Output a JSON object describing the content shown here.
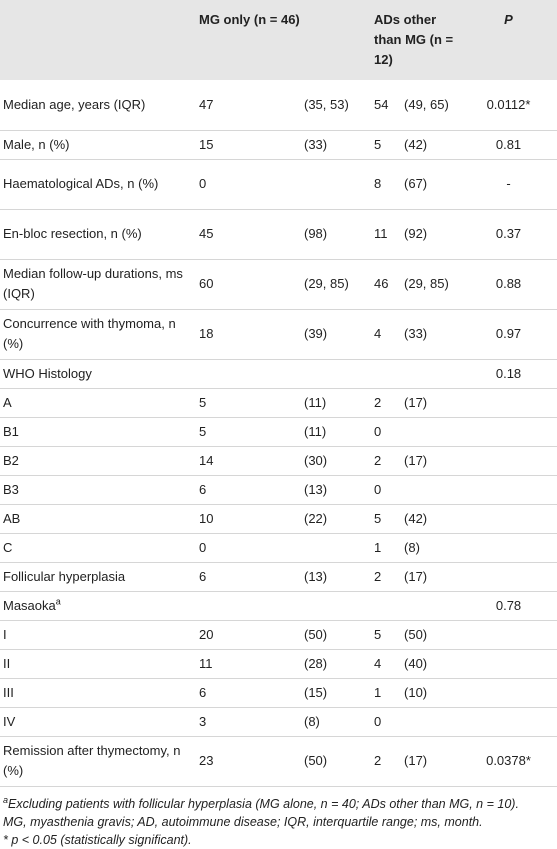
{
  "table": {
    "header": [
      "MG only (n = 46)",
      "ADs other than MG (n = 12)",
      "P"
    ],
    "rows": [
      {
        "label": "Median age, years (IQR)",
        "cells": [
          "47",
          "(35, 53)",
          "54",
          "(49, 65)",
          "0.0112*"
        ]
      },
      {
        "label": "Male, n (%)",
        "cells": [
          "15",
          "(33)",
          "5",
          "(42)",
          "0.81"
        ]
      },
      {
        "label": "Haematological ADs, n (%)",
        "cells": [
          "0",
          null,
          "8",
          "(67)",
          "-"
        ]
      },
      {
        "label": "En-bloc resection, n (%)",
        "cells": [
          "45",
          "(98)",
          "11",
          "(92)",
          "0.37"
        ]
      },
      {
        "label": "Median follow-up durations, ms (IQR)",
        "cells": [
          "60",
          "(29, 85)",
          "46",
          "(29, 85)",
          "0.88"
        ]
      },
      {
        "label": "Concurrence with thymoma, n (%)",
        "cells": [
          "18",
          "(39)",
          "4",
          "(33)",
          "0.97"
        ]
      },
      {
        "label": "WHO Histology",
        "cells": [
          null,
          null,
          null,
          null,
          "0.18"
        ]
      },
      {
        "label": "A",
        "cells": [
          "5",
          "(11)",
          "2",
          "(17)",
          null
        ]
      },
      {
        "label": "B1",
        "cells": [
          "5",
          "(11)",
          "0",
          null,
          null
        ]
      },
      {
        "label": "B2",
        "cells": [
          "14",
          "(30)",
          "2",
          "(17)",
          null
        ]
      },
      {
        "label": "B3",
        "cells": [
          "6",
          "(13)",
          "0",
          null,
          null
        ]
      },
      {
        "label": "AB",
        "cells": [
          "10",
          "(22)",
          "5",
          "(42)",
          null
        ]
      },
      {
        "label": "C",
        "cells": [
          "0",
          null,
          "1",
          "(8)",
          null
        ]
      },
      {
        "label": "Follicular hyperplasia",
        "cells": [
          "6",
          "(13)",
          "2",
          "(17)",
          null
        ]
      },
      {
        "label": "Masaoka",
        "label_sup": "a",
        "cells": [
          null,
          null,
          null,
          null,
          "0.78"
        ]
      },
      {
        "label": "I",
        "cells": [
          "20",
          "(50)",
          "5",
          "(50)",
          null
        ]
      },
      {
        "label": "II",
        "cells": [
          "11",
          "(28)",
          "4",
          "(40)",
          null
        ]
      },
      {
        "label": "III",
        "cells": [
          "6",
          "(15)",
          "1",
          "(10)",
          null
        ]
      },
      {
        "label": "IV",
        "cells": [
          "3",
          "(8)",
          "0",
          null,
          null
        ]
      },
      {
        "label": "Remission after thymectomy, n (%)",
        "cells": [
          "23",
          "(50)",
          "2",
          "(17)",
          "0.0378*"
        ]
      }
    ],
    "footnotes": [
      {
        "marker": "a",
        "text": "Excluding patients with follicular hyperplasia (MG alone, n = 40; ADs other than MG, n = 10)."
      },
      {
        "text": "MG, myasthenia gravis; AD, autoimmune disease; IQR, interquartile range; ms, month."
      },
      {
        "text": "* p < 0.05 (statistically significant)."
      }
    ]
  }
}
